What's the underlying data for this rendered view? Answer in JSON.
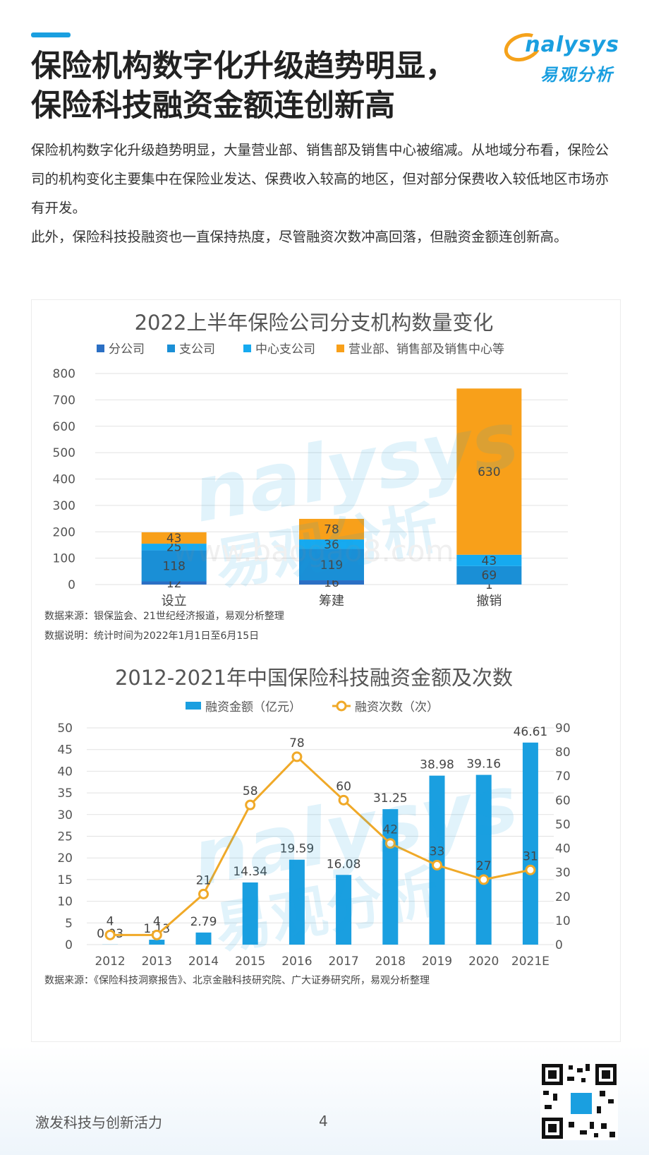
{
  "page": {
    "title_line1": "保险机构数字化升级趋势明显，",
    "title_line2": "保险科技融资金额连创新高",
    "paragraph1": "保险机构数字化升级趋势明显，大量营业部、销售部及销售中心被缩减。从地域分布看，保险公司的机构变化主要集中在保险业发达、保费收入较高的地区，但对部分保费收入较低地区市场亦有开发。",
    "paragraph2": "此外，保险科技投融资也一直保持热度，尽管融资次数冲高回落，但融资金额连创新高。",
    "footer_slogan": "激发科技与创新活力",
    "page_number": "4"
  },
  "logo": {
    "en": "nalysys",
    "cn": "易观分析"
  },
  "chart_data": [
    {
      "type": "bar",
      "stacked": true,
      "title": "2022上半年保险公司分支机构数量变化",
      "categories": [
        "设立",
        "筹建",
        "撤销"
      ],
      "series": [
        {
          "name": "分公司",
          "color": "#2b6fc4",
          "values": [
            12,
            16,
            1
          ]
        },
        {
          "name": "支公司",
          "color": "#1a8fd6",
          "values": [
            118,
            119,
            69
          ]
        },
        {
          "name": "中心支公司",
          "color": "#16aaf0",
          "values": [
            25,
            36,
            43
          ]
        },
        {
          "name": "营业部、销售部及销售中心等",
          "color": "#f8a01a",
          "values": [
            43,
            78,
            630
          ]
        }
      ],
      "yticks": [
        "0",
        "100",
        "200",
        "300",
        "400",
        "500",
        "600",
        "700",
        "800"
      ],
      "ylim": [
        0,
        800
      ],
      "grid": true,
      "legend": "top",
      "source": "数据来源：银保监会、21世纪经济报道，易观分析整理",
      "note": "数据说明：统计时间为2022年1月1日至6月15日"
    },
    {
      "type": "bar+line",
      "title": "2012-2021年中国保险科技融资金额及次数",
      "categories": [
        "2012",
        "2013",
        "2014",
        "2015",
        "2016",
        "2017",
        "2018",
        "2019",
        "2020",
        "2021E"
      ],
      "series": [
        {
          "name": "融资金额（亿元）",
          "type": "bar",
          "color": "#1a9fe0",
          "axis": "left",
          "values": [
            0.03,
            1.13,
            2.79,
            14.34,
            19.59,
            16.08,
            31.25,
            38.98,
            39.16,
            46.61
          ],
          "labels": [
            "0.03",
            "1.13",
            "2.79",
            "14.34",
            "19.59",
            "16.08",
            "31.25",
            "38.98",
            "39.16",
            "46.61"
          ]
        },
        {
          "name": "融资次数（次）",
          "type": "line",
          "color": "#f0a928",
          "axis": "right",
          "values": [
            4,
            4,
            21,
            58,
            78,
            60,
            42,
            33,
            27,
            31
          ],
          "labels": [
            "4",
            "4",
            "21",
            "58",
            "78",
            "60",
            "42",
            "33",
            "27",
            "31"
          ]
        }
      ],
      "yticks_left": [
        "0",
        "5",
        "10",
        "15",
        "20",
        "25",
        "30",
        "35",
        "40",
        "45",
        "50"
      ],
      "yticks_right": [
        "0",
        "10",
        "20",
        "30",
        "40",
        "50",
        "60",
        "70",
        "80",
        "90"
      ],
      "ylim_left": [
        0,
        50
      ],
      "ylim_right": [
        0,
        90
      ],
      "grid": true,
      "legend": "top",
      "source": "数据来源：《保险科技洞察报告》、北京金融科技研究院、广大证券研究所，易观分析整理"
    }
  ],
  "watermarks": {
    "brand": "nalysys",
    "brand_cn": "易观分析",
    "site": "www.baogao8.com"
  }
}
